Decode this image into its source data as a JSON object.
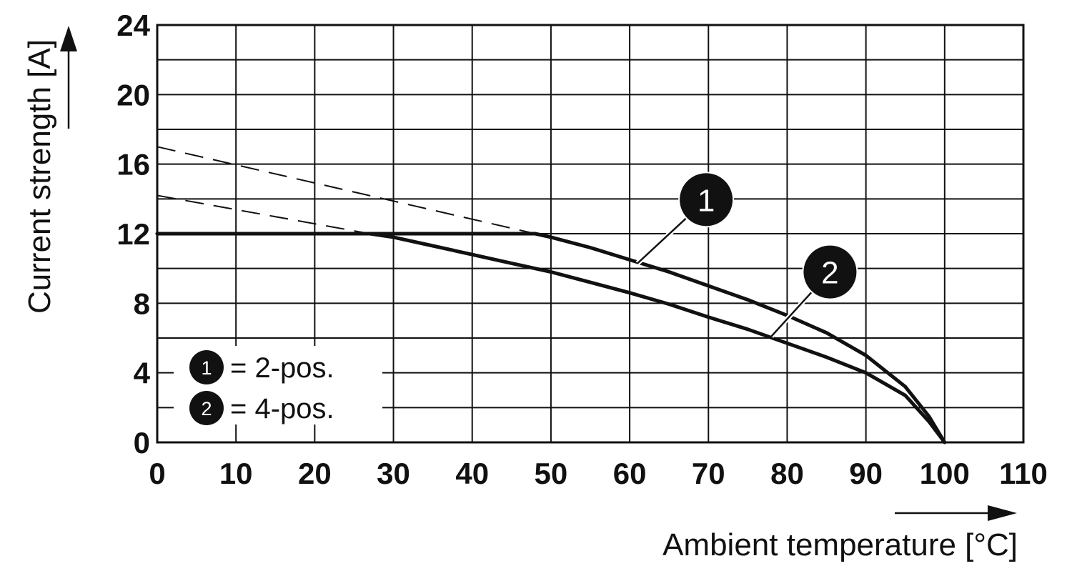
{
  "chart_data": {
    "type": "line",
    "xlabel": "Ambient temperature [°C]",
    "ylabel": "Current strength [A]",
    "xlim": [
      0,
      110
    ],
    "ylim": [
      0,
      24
    ],
    "x_ticks": [
      0,
      10,
      20,
      30,
      40,
      50,
      60,
      70,
      80,
      90,
      100,
      110
    ],
    "y_ticks": [
      0,
      4,
      8,
      12,
      16,
      20,
      24
    ],
    "x_grid_step": 10,
    "y_grid_step": 2,
    "grid": true,
    "legend_position": "bottom-left",
    "legend": [
      {
        "marker": "1",
        "text": "= 2-pos."
      },
      {
        "marker": "2",
        "text": "= 4-pos."
      }
    ],
    "series": [
      {
        "marker": "1",
        "points": [
          [
            0,
            12
          ],
          [
            10,
            12
          ],
          [
            20,
            12
          ],
          [
            30,
            12
          ],
          [
            40,
            12
          ],
          [
            48,
            12
          ],
          [
            50,
            11.8
          ],
          [
            55,
            11.2
          ],
          [
            60,
            10.5
          ],
          [
            65,
            9.8
          ],
          [
            70,
            9.0
          ],
          [
            75,
            8.2
          ],
          [
            80,
            7.3
          ],
          [
            85,
            6.3
          ],
          [
            90,
            5.0
          ],
          [
            95,
            3.2
          ],
          [
            98,
            1.5
          ],
          [
            100,
            0
          ]
        ],
        "extrapolation": [
          [
            0,
            17
          ],
          [
            48,
            12
          ]
        ]
      },
      {
        "marker": "2",
        "points": [
          [
            0,
            12
          ],
          [
            10,
            12
          ],
          [
            20,
            12
          ],
          [
            27,
            12
          ],
          [
            30,
            11.8
          ],
          [
            35,
            11.3
          ],
          [
            40,
            10.8
          ],
          [
            45,
            10.3
          ],
          [
            50,
            9.8
          ],
          [
            55,
            9.2
          ],
          [
            60,
            8.6
          ],
          [
            65,
            7.95
          ],
          [
            70,
            7.2
          ],
          [
            75,
            6.5
          ],
          [
            80,
            5.7
          ],
          [
            85,
            4.9
          ],
          [
            90,
            4.0
          ],
          [
            95,
            2.7
          ],
          [
            98,
            1.2
          ],
          [
            100,
            0
          ]
        ],
        "extrapolation": [
          [
            0,
            14.2
          ],
          [
            27,
            12
          ]
        ]
      }
    ],
    "annotations": [
      {
        "marker": "1",
        "x": 61,
        "y": 10.3
      },
      {
        "marker": "2",
        "x": 78,
        "y": 6.1
      }
    ]
  }
}
